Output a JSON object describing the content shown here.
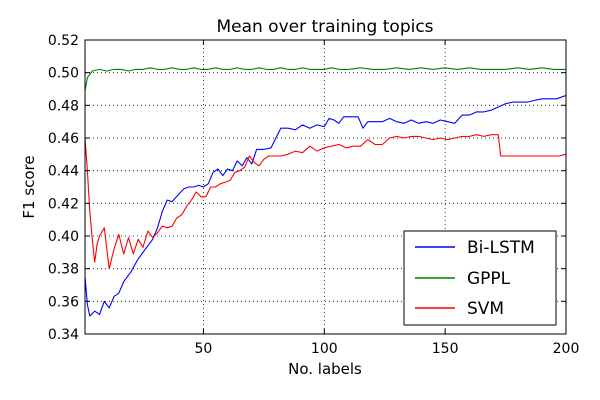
{
  "chart_data": {
    "type": "line",
    "title": "Mean over training topics",
    "xlabel": "No. labels",
    "ylabel": "F1 score",
    "xlim": [
      1,
      200
    ],
    "ylim": [
      0.34,
      0.52
    ],
    "grid": true,
    "legend_position": "lower-right",
    "x_ticks": [
      50,
      100,
      150,
      200
    ],
    "y_ticks": [
      0.34,
      0.36,
      0.38,
      0.4,
      0.42,
      0.44,
      0.46,
      0.48,
      0.5,
      0.52
    ],
    "x_tick_labels": [
      "50",
      "100",
      "150",
      "200"
    ],
    "y_tick_labels": [
      "0.34",
      "0.36",
      "0.38",
      "0.40",
      "0.42",
      "0.44",
      "0.46",
      "0.48",
      "0.50",
      "0.52"
    ],
    "series": [
      {
        "name": "Bi-LSTM",
        "color": "#0000ff",
        "points": [
          [
            1,
            0.375
          ],
          [
            2,
            0.358
          ],
          [
            3,
            0.351
          ],
          [
            5,
            0.354
          ],
          [
            7,
            0.352
          ],
          [
            9,
            0.36
          ],
          [
            11,
            0.356
          ],
          [
            13,
            0.363
          ],
          [
            15,
            0.365
          ],
          [
            17,
            0.372
          ],
          [
            20,
            0.378
          ],
          [
            23,
            0.386
          ],
          [
            26,
            0.392
          ],
          [
            29,
            0.398
          ],
          [
            31,
            0.405
          ],
          [
            33,
            0.415
          ],
          [
            35,
            0.422
          ],
          [
            37,
            0.421
          ],
          [
            40,
            0.426
          ],
          [
            42,
            0.429
          ],
          [
            44,
            0.43
          ],
          [
            46,
            0.43
          ],
          [
            48,
            0.431
          ],
          [
            50,
            0.43
          ],
          [
            52,
            0.432
          ],
          [
            54,
            0.439
          ],
          [
            56,
            0.441
          ],
          [
            58,
            0.437
          ],
          [
            60,
            0.441
          ],
          [
            62,
            0.44
          ],
          [
            64,
            0.446
          ],
          [
            66,
            0.443
          ],
          [
            68,
            0.448
          ],
          [
            70,
            0.444
          ],
          [
            72,
            0.453
          ],
          [
            75,
            0.453
          ],
          [
            78,
            0.454
          ],
          [
            80,
            0.46
          ],
          [
            82,
            0.466
          ],
          [
            85,
            0.466
          ],
          [
            88,
            0.465
          ],
          [
            91,
            0.468
          ],
          [
            94,
            0.466
          ],
          [
            97,
            0.468
          ],
          [
            100,
            0.467
          ],
          [
            102,
            0.472
          ],
          [
            104,
            0.471
          ],
          [
            106,
            0.469
          ],
          [
            108,
            0.473
          ],
          [
            111,
            0.473
          ],
          [
            114,
            0.473
          ],
          [
            116,
            0.466
          ],
          [
            118,
            0.47
          ],
          [
            121,
            0.47
          ],
          [
            124,
            0.47
          ],
          [
            127,
            0.472
          ],
          [
            130,
            0.47
          ],
          [
            133,
            0.469
          ],
          [
            136,
            0.471
          ],
          [
            139,
            0.469
          ],
          [
            142,
            0.47
          ],
          [
            145,
            0.469
          ],
          [
            148,
            0.471
          ],
          [
            151,
            0.47
          ],
          [
            154,
            0.469
          ],
          [
            157,
            0.474
          ],
          [
            160,
            0.474
          ],
          [
            163,
            0.476
          ],
          [
            166,
            0.476
          ],
          [
            169,
            0.477
          ],
          [
            172,
            0.479
          ],
          [
            175,
            0.481
          ],
          [
            178,
            0.482
          ],
          [
            181,
            0.482
          ],
          [
            184,
            0.482
          ],
          [
            187,
            0.483
          ],
          [
            190,
            0.484
          ],
          [
            193,
            0.484
          ],
          [
            196,
            0.484
          ],
          [
            198,
            0.485
          ],
          [
            200,
            0.486
          ]
        ]
      },
      {
        "name": "GPPL",
        "color": "#008000",
        "points": [
          [
            1,
            0.489
          ],
          [
            2,
            0.497
          ],
          [
            4,
            0.501
          ],
          [
            7,
            0.502
          ],
          [
            10,
            0.501
          ],
          [
            13,
            0.502
          ],
          [
            16,
            0.502
          ],
          [
            19,
            0.501
          ],
          [
            22,
            0.502
          ],
          [
            25,
            0.502
          ],
          [
            28,
            0.503
          ],
          [
            31,
            0.502
          ],
          [
            34,
            0.502
          ],
          [
            37,
            0.503
          ],
          [
            40,
            0.502
          ],
          [
            43,
            0.502
          ],
          [
            46,
            0.503
          ],
          [
            49,
            0.502
          ],
          [
            52,
            0.502
          ],
          [
            55,
            0.503
          ],
          [
            58,
            0.502
          ],
          [
            61,
            0.502
          ],
          [
            64,
            0.503
          ],
          [
            67,
            0.502
          ],
          [
            70,
            0.502
          ],
          [
            73,
            0.503
          ],
          [
            76,
            0.502
          ],
          [
            79,
            0.502
          ],
          [
            82,
            0.503
          ],
          [
            85,
            0.502
          ],
          [
            88,
            0.502
          ],
          [
            91,
            0.503
          ],
          [
            94,
            0.502
          ],
          [
            97,
            0.502
          ],
          [
            100,
            0.502
          ],
          [
            103,
            0.503
          ],
          [
            106,
            0.502
          ],
          [
            110,
            0.502
          ],
          [
            115,
            0.503
          ],
          [
            120,
            0.502
          ],
          [
            125,
            0.502
          ],
          [
            130,
            0.503
          ],
          [
            135,
            0.502
          ],
          [
            140,
            0.503
          ],
          [
            145,
            0.502
          ],
          [
            150,
            0.503
          ],
          [
            155,
            0.502
          ],
          [
            160,
            0.503
          ],
          [
            165,
            0.502
          ],
          [
            170,
            0.502
          ],
          [
            175,
            0.502
          ],
          [
            180,
            0.503
          ],
          [
            185,
            0.502
          ],
          [
            190,
            0.503
          ],
          [
            195,
            0.502
          ],
          [
            200,
            0.502
          ]
        ]
      },
      {
        "name": "SVM",
        "color": "#ff0000",
        "points": [
          [
            1,
            0.46
          ],
          [
            2,
            0.44
          ],
          [
            3,
            0.415
          ],
          [
            4,
            0.398
          ],
          [
            5,
            0.384
          ],
          [
            6,
            0.395
          ],
          [
            7,
            0.4
          ],
          [
            9,
            0.405
          ],
          [
            11,
            0.38
          ],
          [
            13,
            0.392
          ],
          [
            15,
            0.401
          ],
          [
            17,
            0.389
          ],
          [
            19,
            0.399
          ],
          [
            21,
            0.389
          ],
          [
            23,
            0.398
          ],
          [
            25,
            0.393
          ],
          [
            27,
            0.403
          ],
          [
            29,
            0.399
          ],
          [
            31,
            0.402
          ],
          [
            33,
            0.406
          ],
          [
            35,
            0.405
          ],
          [
            37,
            0.406
          ],
          [
            39,
            0.411
          ],
          [
            41,
            0.413
          ],
          [
            43,
            0.418
          ],
          [
            45,
            0.422
          ],
          [
            47,
            0.427
          ],
          [
            49,
            0.424
          ],
          [
            51,
            0.424
          ],
          [
            53,
            0.43
          ],
          [
            55,
            0.43
          ],
          [
            57,
            0.432
          ],
          [
            59,
            0.433
          ],
          [
            61,
            0.434
          ],
          [
            63,
            0.439
          ],
          [
            65,
            0.44
          ],
          [
            67,
            0.442
          ],
          [
            69,
            0.449
          ],
          [
            71,
            0.445
          ],
          [
            73,
            0.443
          ],
          [
            75,
            0.447
          ],
          [
            77,
            0.449
          ],
          [
            79,
            0.449
          ],
          [
            82,
            0.449
          ],
          [
            85,
            0.45
          ],
          [
            88,
            0.452
          ],
          [
            91,
            0.451
          ],
          [
            94,
            0.455
          ],
          [
            97,
            0.452
          ],
          [
            100,
            0.454
          ],
          [
            103,
            0.455
          ],
          [
            106,
            0.456
          ],
          [
            109,
            0.454
          ],
          [
            112,
            0.455
          ],
          [
            115,
            0.455
          ],
          [
            118,
            0.459
          ],
          [
            121,
            0.456
          ],
          [
            124,
            0.456
          ],
          [
            127,
            0.46
          ],
          [
            130,
            0.461
          ],
          [
            133,
            0.46
          ],
          [
            136,
            0.461
          ],
          [
            139,
            0.461
          ],
          [
            142,
            0.46
          ],
          [
            145,
            0.459
          ],
          [
            148,
            0.46
          ],
          [
            151,
            0.459
          ],
          [
            154,
            0.46
          ],
          [
            157,
            0.461
          ],
          [
            160,
            0.461
          ],
          [
            163,
            0.462
          ],
          [
            166,
            0.461
          ],
          [
            169,
            0.462
          ],
          [
            172,
            0.462
          ],
          [
            173,
            0.449
          ],
          [
            176,
            0.449
          ],
          [
            179,
            0.449
          ],
          [
            182,
            0.449
          ],
          [
            185,
            0.449
          ],
          [
            188,
            0.449
          ],
          [
            191,
            0.449
          ],
          [
            194,
            0.449
          ],
          [
            197,
            0.449
          ],
          [
            200,
            0.45
          ]
        ]
      }
    ]
  }
}
